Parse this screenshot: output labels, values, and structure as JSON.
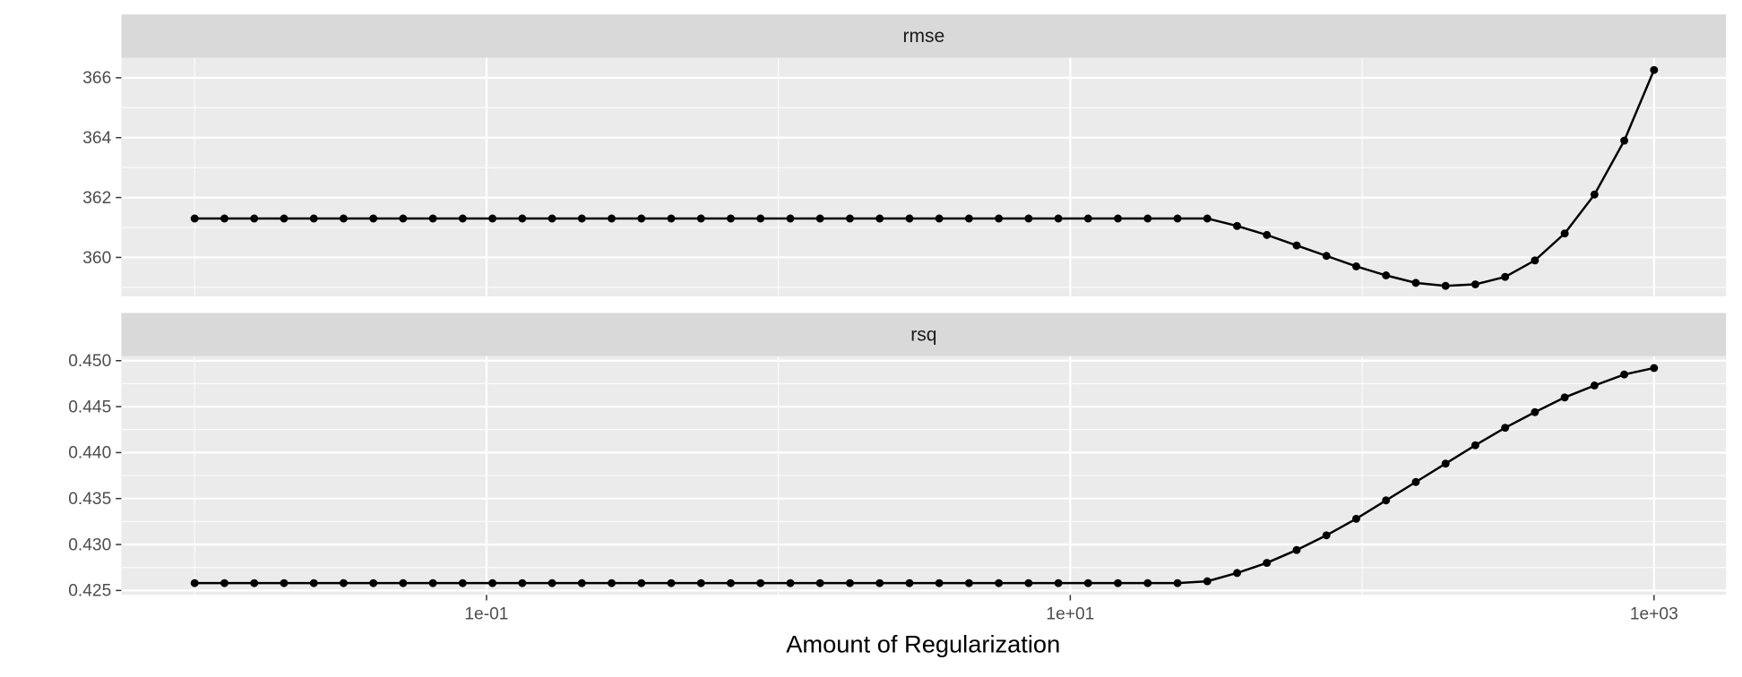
{
  "chart_data": {
    "type": "line",
    "x_label": "Amount of Regularization",
    "log_x": true,
    "grid": true,
    "color": "#000000",
    "x": [
      0.01,
      0.01265,
      0.016,
      0.02024,
      0.0256,
      0.03237,
      0.04095,
      0.05179,
      0.06551,
      0.08286,
      0.1048,
      0.1326,
      0.1677,
      0.2121,
      0.2683,
      0.3393,
      0.4292,
      0.5429,
      0.6866,
      0.8685,
      1.099,
      1.389,
      1.758,
      2.223,
      2.812,
      3.556,
      4.498,
      5.69,
      7.197,
      9.103,
      11.51,
      14.56,
      18.42,
      23.3,
      29.47,
      37.28,
      47.15,
      59.64,
      75.44,
      95.42,
      120.7,
      152.7,
      193.1,
      244.2,
      308.9,
      390.7,
      494.2,
      625.1,
      790.6,
      1000
    ],
    "xlim": [
      0.00561,
      1766
    ],
    "xticks": [
      {
        "value": 0.1,
        "label": "1e-01"
      },
      {
        "value": 10,
        "label": "1e+01"
      },
      {
        "value": 1000,
        "label": "1e+03"
      }
    ],
    "panels": [
      {
        "title": "rmse",
        "ylim": [
          358.7,
          366.67
        ],
        "yticks": [
          360,
          362,
          364,
          366
        ],
        "values": [
          361.3,
          361.3,
          361.3,
          361.3,
          361.3,
          361.3,
          361.3,
          361.3,
          361.3,
          361.3,
          361.3,
          361.3,
          361.3,
          361.3,
          361.3,
          361.3,
          361.3,
          361.3,
          361.3,
          361.3,
          361.3,
          361.3,
          361.3,
          361.3,
          361.3,
          361.3,
          361.3,
          361.3,
          361.3,
          361.3,
          361.3,
          361.3,
          361.3,
          361.3,
          361.3,
          361.05,
          360.75,
          360.4,
          360.05,
          359.7,
          359.4,
          359.15,
          359.05,
          359.1,
          359.35,
          359.9,
          360.8,
          362.1,
          363.9,
          366.26
        ]
      },
      {
        "title": "rsq",
        "ylim": [
          0.42452,
          0.45048
        ],
        "yticks": [
          {
            "value": 0.425,
            "label": "0.425"
          },
          {
            "value": 0.43,
            "label": "0.430"
          },
          {
            "value": 0.435,
            "label": "0.435"
          },
          {
            "value": 0.44,
            "label": "0.440"
          },
          {
            "value": 0.445,
            "label": "0.445"
          },
          {
            "value": 0.45,
            "label": "0.450"
          }
        ],
        "values": [
          0.4258,
          0.4258,
          0.4258,
          0.4258,
          0.4258,
          0.4258,
          0.4258,
          0.4258,
          0.4258,
          0.4258,
          0.4258,
          0.4258,
          0.4258,
          0.4258,
          0.4258,
          0.4258,
          0.4258,
          0.4258,
          0.4258,
          0.4258,
          0.4258,
          0.4258,
          0.4258,
          0.4258,
          0.4258,
          0.4258,
          0.4258,
          0.4258,
          0.4258,
          0.4258,
          0.4258,
          0.4258,
          0.4258,
          0.4258,
          0.426,
          0.4269,
          0.428,
          0.4294,
          0.431,
          0.4328,
          0.4348,
          0.4368,
          0.4388,
          0.4408,
          0.4427,
          0.4444,
          0.446,
          0.4473,
          0.4485,
          0.4492
        ]
      }
    ]
  }
}
